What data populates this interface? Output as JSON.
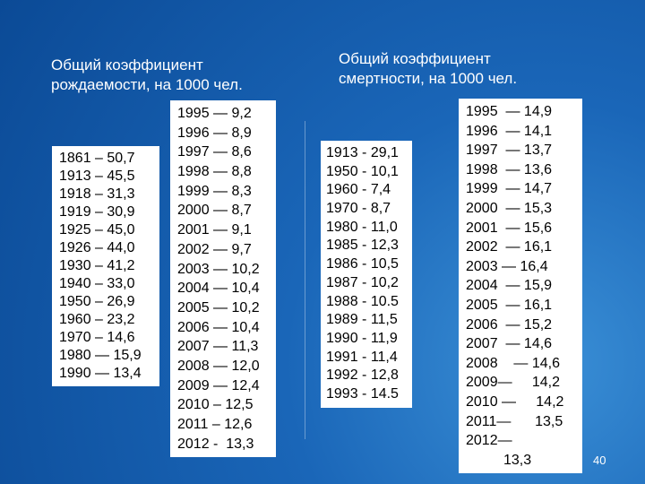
{
  "left": {
    "heading": [
      "Общий коэффициент",
      "рождаемости, на 1000 чел."
    ],
    "list_a": [
      "1861 – 50,7",
      "1913 – 45,5",
      "1918 – 31,3",
      "1919 – 30,9",
      "1925 – 45,0",
      "1926 – 44,0",
      "1930 – 41,2",
      "1940 – 33,0",
      "1950 – 26,9",
      "1960 – 23,2",
      "1970 – 14,6",
      "1980 — 15,9",
      "1990 — 13,4"
    ],
    "list_b": [
      "1995 — 9,2",
      "1996 — 8,9",
      "1997 — 8,6",
      "1998 — 8,8",
      "1999 — 8,3",
      "2000 — 8,7",
      "2001 — 9,1",
      "2002 — 9,7",
      "2003 — 10,2",
      "2004 — 10,4",
      "2005 — 10,2",
      "2006 — 10,4",
      "2007 — 11,3",
      "2008 — 12,0",
      "2009 — 12,4",
      "2010 – 12,5",
      "2011 – 12,6",
      "2012 -  13,3"
    ]
  },
  "right": {
    "heading": [
      "Общий коэффициент",
      "смертности, на 1000 чел."
    ],
    "list_a": [
      "1913 - 29,1",
      "1950 - 10,1",
      "1960 - 7,4",
      "1970 - 8,7",
      "1980 - 11,0",
      "1985 - 12,3",
      "1986 - 10,5",
      "1987 - 10,2",
      "1988 - 10.5",
      "1989 - 11,5",
      "1990 - 11,9",
      "1991 - 11,4",
      "1992 - 12,8",
      "1993 - 14.5"
    ],
    "list_b": [
      "1995  — 14,9",
      "1996  — 14,1",
      "1997  — 13,7",
      "1998  — 13,6",
      "1999  — 14,7",
      "2000  — 15,3",
      "2001  — 15,6",
      "2002  — 16,1",
      "2003 — 16,4",
      "2004  — 15,9",
      "2005  — 16,1",
      "2006  — 15,2",
      "2007  — 14,6",
      "2008    — 14,6",
      "2009—     14,2",
      "2010 —     14,2",
      "2011—      13,5",
      "2012—",
      "13,3"
    ]
  },
  "page_number": "40"
}
